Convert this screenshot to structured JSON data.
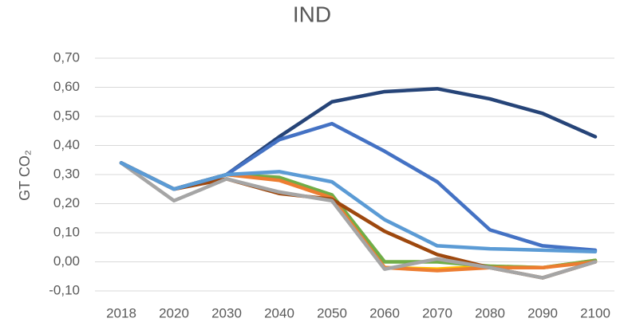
{
  "chart_data": {
    "type": "line",
    "title": "IND",
    "ylabel": "GT CO₂",
    "categories": [
      "2018",
      "2020",
      "2030",
      "2040",
      "2050",
      "2060",
      "2070",
      "2080",
      "2090",
      "2100"
    ],
    "ylim": [
      -0.1,
      0.7
    ],
    "yticks": [
      {
        "value": -0.1,
        "label": "-0,10"
      },
      {
        "value": 0,
        "label": "0,00"
      },
      {
        "value": 0.1,
        "label": "0,10"
      },
      {
        "value": 0.2,
        "label": "0,20"
      },
      {
        "value": 0.3,
        "label": "0,30"
      },
      {
        "value": 0.4,
        "label": "0,40"
      },
      {
        "value": 0.5,
        "label": "0,50"
      },
      {
        "value": 0.6,
        "label": "0,60"
      },
      {
        "value": 0.7,
        "label": "0,70"
      }
    ],
    "grid": true,
    "series": [
      {
        "color": "#ffc000",
        "values": [
          0.34,
          0.25,
          0.3,
          0.285,
          0.225,
          -0.02,
          -0.025,
          -0.015,
          -0.02,
          0.005
        ]
      },
      {
        "color": "#70ad47",
        "values": [
          0.34,
          0.25,
          0.3,
          0.29,
          0.23,
          0.0,
          0.0,
          -0.015,
          -0.02,
          0.005
        ]
      },
      {
        "color": "#ed7d31",
        "values": [
          0.34,
          0.25,
          0.3,
          0.28,
          0.22,
          -0.02,
          -0.03,
          -0.02,
          -0.02,
          0.0
        ]
      },
      {
        "color": "#9e480e",
        "values": [
          0.34,
          0.25,
          0.285,
          0.235,
          0.215,
          0.105,
          0.025,
          -0.02,
          -0.055,
          0.0
        ]
      },
      {
        "color": "#a5a5a5",
        "values": [
          0.34,
          0.21,
          0.285,
          0.24,
          0.21,
          -0.025,
          0.01,
          -0.02,
          -0.055,
          0.0
        ]
      },
      {
        "color": "#264478",
        "values": [
          0.34,
          0.25,
          0.3,
          0.43,
          0.55,
          0.585,
          0.595,
          0.56,
          0.51,
          0.43
        ]
      },
      {
        "color": "#4472c4",
        "values": [
          0.34,
          0.25,
          0.3,
          0.42,
          0.475,
          0.38,
          0.275,
          0.11,
          0.055,
          0.04
        ]
      },
      {
        "color": "#5b9bd5",
        "values": [
          0.34,
          0.25,
          0.3,
          0.31,
          0.275,
          0.145,
          0.055,
          0.045,
          0.04,
          0.035
        ]
      }
    ]
  }
}
